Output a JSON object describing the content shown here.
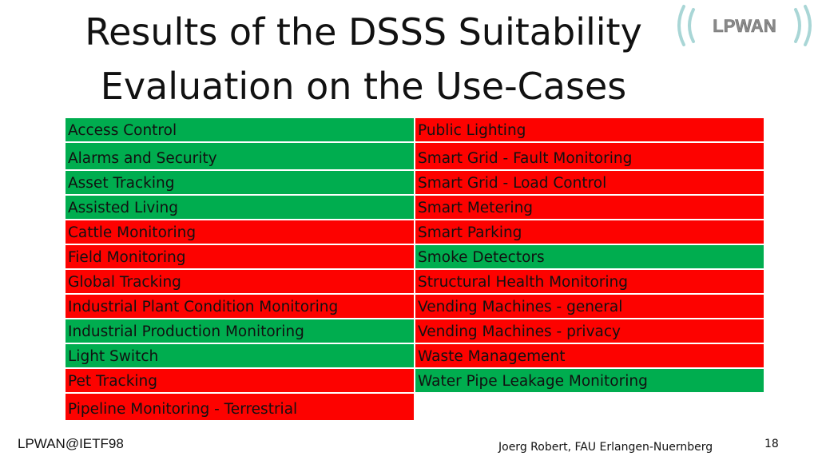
{
  "slide": {
    "title_line1": "Results of the DSSS Suitability",
    "title_line2": "Evaluation on the Use-Cases",
    "logo_text": "LPWAN",
    "footer_left": "LPWAN@IETF98",
    "footer_center": "Joerg Robert, FAU Erlangen-Nuernberg",
    "page_number": "18"
  },
  "colors": {
    "suitable": "#00ad4f",
    "not_suitable": "#fd0200",
    "logo_bracket": "#a9d6d6"
  },
  "use_cases": {
    "left": [
      {
        "label": "Access Control",
        "status": "green"
      },
      {
        "label": "Alarms and Security",
        "status": "green"
      },
      {
        "label": "Asset Tracking",
        "status": "green"
      },
      {
        "label": "Assisted Living",
        "status": "green"
      },
      {
        "label": "Cattle Monitoring",
        "status": "red"
      },
      {
        "label": "Field Monitoring",
        "status": "red"
      },
      {
        "label": "Global Tracking",
        "status": "red"
      },
      {
        "label": "Industrial Plant Condition Monitoring",
        "status": "red"
      },
      {
        "label": "Industrial Production Monitoring",
        "status": "green"
      },
      {
        "label": "Light Switch",
        "status": "green"
      },
      {
        "label": "Pet Tracking",
        "status": "red"
      },
      {
        "label": "Pipeline Monitoring - Terrestrial",
        "status": "red"
      }
    ],
    "right": [
      {
        "label": "Public Lighting",
        "status": "red"
      },
      {
        "label": "Smart Grid - Fault Monitoring",
        "status": "red"
      },
      {
        "label": "Smart Grid - Load Control",
        "status": "red"
      },
      {
        "label": "Smart Metering",
        "status": "red"
      },
      {
        "label": "Smart Parking",
        "status": "red"
      },
      {
        "label": "Smoke Detectors",
        "status": "green"
      },
      {
        "label": "Structural Health Monitoring",
        "status": "red"
      },
      {
        "label": "Vending Machines - general",
        "status": "red"
      },
      {
        "label": "Vending Machines - privacy",
        "status": "red"
      },
      {
        "label": "Waste Management",
        "status": "red"
      },
      {
        "label": "Water Pipe Leakage Monitoring",
        "status": "green"
      }
    ]
  }
}
